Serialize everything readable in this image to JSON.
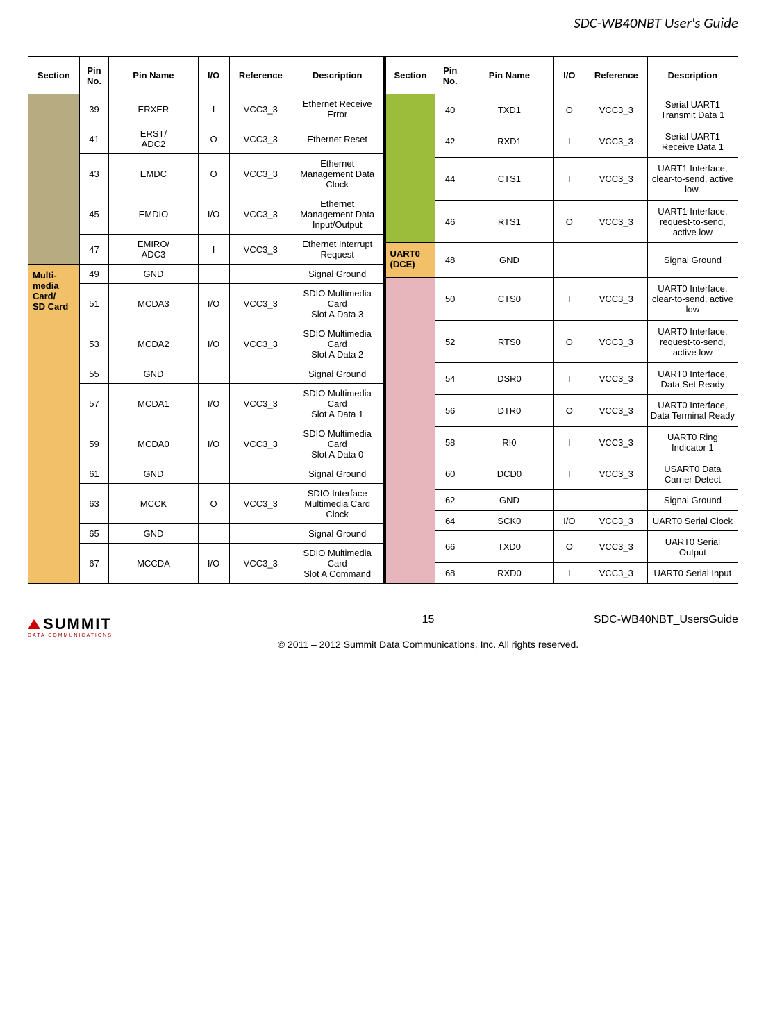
{
  "doc": {
    "header_title": "SDC-WB40NBT User's Guide",
    "page_number": "15",
    "doc_name": "SDC-WB40NBT_UsersGuide",
    "copyright": "© 2011 – 2012 Summit Data Communications, Inc. All rights reserved.",
    "logo_main": "SUMMIT",
    "logo_sub": "DATA COMMUNICATIONS"
  },
  "colors": {
    "section_left_a": "#b7ac81",
    "section_left_b": "#f2c068",
    "section_right_a": "#9cbd3c",
    "section_right_b": "#f2c068",
    "section_right_c": "#e7b6bd",
    "header_bg": "#ffffff",
    "border": "#000000"
  },
  "table": {
    "headers": [
      "Section",
      "Pin No.",
      "Pin Name",
      "I/O",
      "Reference",
      "Description"
    ],
    "left_sections": [
      {
        "label": "",
        "color_key": "section_left_a",
        "rowspan": 5
      },
      {
        "label": "Multi-media Card/\nSD Card",
        "color_key": "section_left_b",
        "rowspan": 10
      }
    ],
    "right_sections": [
      {
        "label": "",
        "color_key": "section_right_a",
        "rowspan": 4
      },
      {
        "label": "UART0 (DCE)",
        "color_key": "section_right_b",
        "rowspan": 1
      },
      {
        "label": "",
        "color_key": "section_right_c",
        "rowspan": 10
      }
    ],
    "left_rows": [
      {
        "pin": "39",
        "name": "ERXER",
        "io": "I",
        "ref": "VCC3_3",
        "desc": "Ethernet Receive Error"
      },
      {
        "pin": "41",
        "name": "ERST/\nADC2",
        "io": "O",
        "ref": "VCC3_3",
        "desc": "Ethernet Reset"
      },
      {
        "pin": "43",
        "name": "EMDC",
        "io": "O",
        "ref": "VCC3_3",
        "desc": "Ethernet Management Data Clock"
      },
      {
        "pin": "45",
        "name": "EMDIO",
        "io": "I/O",
        "ref": "VCC3_3",
        "desc": "Ethernet Management Data Input/Output"
      },
      {
        "pin": "47",
        "name": "EMIRO/\nADC3",
        "io": "I",
        "ref": "VCC3_3",
        "desc": "Ethernet Interrupt Request"
      },
      {
        "pin": "49",
        "name": "GND",
        "io": "",
        "ref": "",
        "desc": "Signal Ground"
      },
      {
        "pin": "51",
        "name": "MCDA3",
        "io": "I/O",
        "ref": "VCC3_3",
        "desc": "SDIO Multimedia Card\nSlot A Data 3"
      },
      {
        "pin": "53",
        "name": "MCDA2",
        "io": "I/O",
        "ref": "VCC3_3",
        "desc": "SDIO Multimedia Card\nSlot A Data 2"
      },
      {
        "pin": "55",
        "name": "GND",
        "io": "",
        "ref": "",
        "desc": "Signal Ground"
      },
      {
        "pin": "57",
        "name": "MCDA1",
        "io": "I/O",
        "ref": "VCC3_3",
        "desc": "SDIO Multimedia Card\nSlot A Data 1"
      },
      {
        "pin": "59",
        "name": "MCDA0",
        "io": "I/O",
        "ref": "VCC3_3",
        "desc": "SDIO Multimedia Card\nSlot A Data 0"
      },
      {
        "pin": "61",
        "name": "GND",
        "io": "",
        "ref": "",
        "desc": "Signal Ground"
      },
      {
        "pin": "63",
        "name": "MCCK",
        "io": "O",
        "ref": "VCC3_3",
        "desc": "SDIO Interface Multimedia Card Clock"
      },
      {
        "pin": "65",
        "name": "GND",
        "io": "",
        "ref": "",
        "desc": "Signal Ground"
      },
      {
        "pin": "67",
        "name": "MCCDA",
        "io": "I/O",
        "ref": "VCC3_3",
        "desc": "SDIO Multimedia Card\nSlot A Command"
      }
    ],
    "right_rows": [
      {
        "pin": "40",
        "name": "TXD1",
        "io": "O",
        "ref": "VCC3_3",
        "desc": "Serial UART1 Transmit Data 1"
      },
      {
        "pin": "42",
        "name": "RXD1",
        "io": "I",
        "ref": "VCC3_3",
        "desc": "Serial UART1 Receive Data 1"
      },
      {
        "pin": "44",
        "name": "CTS1",
        "io": "I",
        "ref": "VCC3_3",
        "desc": "UART1 Interface, clear-to-send, active low."
      },
      {
        "pin": "46",
        "name": "RTS1",
        "io": "O",
        "ref": "VCC3_3",
        "desc": "UART1 Interface, request-to-send, active low"
      },
      {
        "pin": "48",
        "name": "GND",
        "io": "",
        "ref": "",
        "desc": "Signal Ground"
      },
      {
        "pin": "50",
        "name": "CTS0",
        "io": "I",
        "ref": "VCC3_3",
        "desc": "UART0 Interface, clear-to-send, active low"
      },
      {
        "pin": "52",
        "name": "RTS0",
        "io": "O",
        "ref": "VCC3_3",
        "desc": "UART0 Interface, request-to-send, active low"
      },
      {
        "pin": "54",
        "name": "DSR0",
        "io": "I",
        "ref": "VCC3_3",
        "desc": "UART0 Interface, Data Set Ready"
      },
      {
        "pin": "56",
        "name": "DTR0",
        "io": "O",
        "ref": "VCC3_3",
        "desc": "UART0 Interface, Data Terminal Ready"
      },
      {
        "pin": "58",
        "name": "RI0",
        "io": "I",
        "ref": "VCC3_3",
        "desc": "UART0 Ring Indicator 1"
      },
      {
        "pin": "60",
        "name": "DCD0",
        "io": "I",
        "ref": "VCC3_3",
        "desc": "USART0 Data Carrier Detect"
      },
      {
        "pin": "62",
        "name": "GND",
        "io": "",
        "ref": "",
        "desc": "Signal Ground"
      },
      {
        "pin": "64",
        "name": "SCK0",
        "io": "I/O",
        "ref": "VCC3_3",
        "desc": "UART0 Serial Clock"
      },
      {
        "pin": "66",
        "name": "TXD0",
        "io": "O",
        "ref": "VCC3_3",
        "desc": "UART0 Serial Output"
      },
      {
        "pin": "68",
        "name": "RXD0",
        "io": "I",
        "ref": "VCC3_3",
        "desc": "UART0 Serial Input"
      }
    ]
  }
}
